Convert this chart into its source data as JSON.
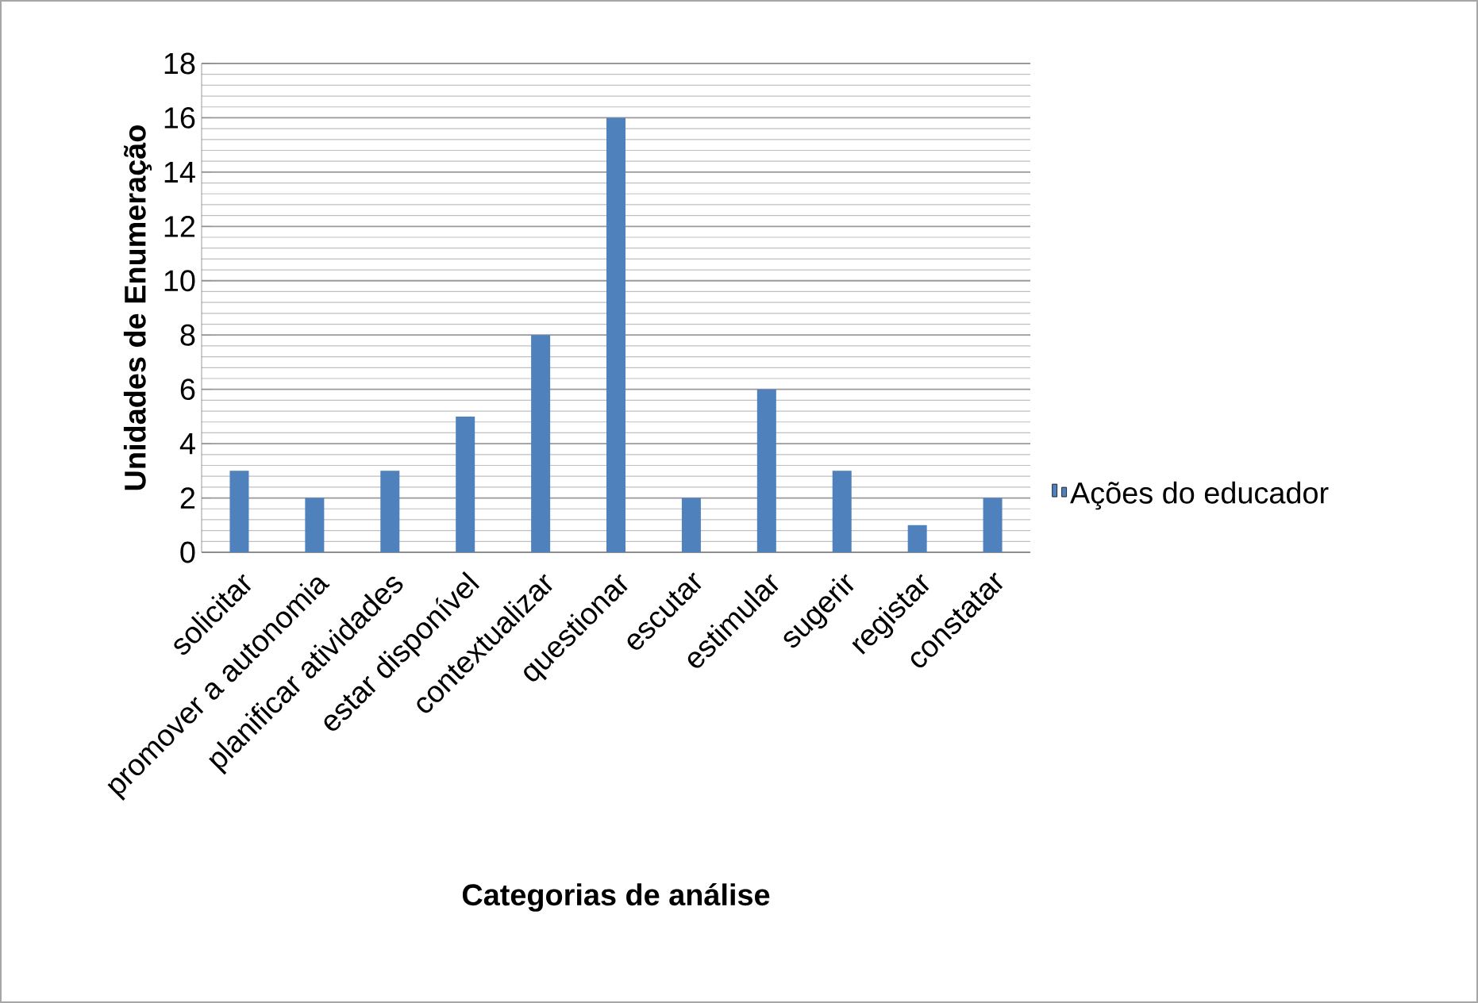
{
  "chart_data": {
    "type": "bar",
    "xlabel": "Categorias de análise",
    "ylabel": "Unidades de Enumeração",
    "categories": [
      "solicitar",
      "promover a autonomia",
      "planificar atividades",
      "estar disponível",
      "contextualizar",
      "questionar",
      "escutar",
      "estimular",
      "sugerir",
      "registar",
      "constatar"
    ],
    "series": [
      {
        "name": "Ações do educador",
        "color": "#4f81bd",
        "values": [
          3,
          2,
          3,
          5,
          8,
          16,
          2,
          6,
          3,
          1,
          2
        ]
      }
    ],
    "ylim": [
      0,
      18
    ],
    "yticks": [
      0,
      2,
      4,
      6,
      8,
      10,
      12,
      14,
      16,
      18
    ],
    "grid": "y",
    "legend": "right"
  }
}
